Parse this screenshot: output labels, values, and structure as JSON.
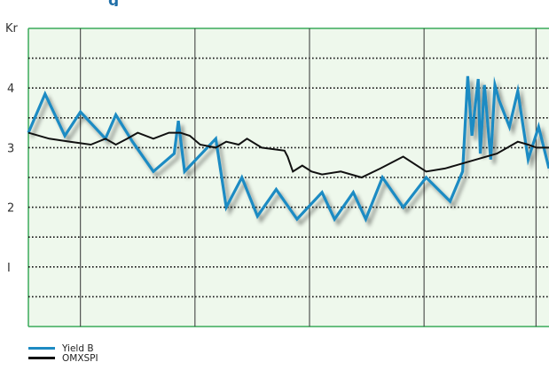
{
  "chart_data": {
    "type": "line",
    "title_fragment": "g",
    "y_unit_label": "Kr",
    "ylim": [
      0,
      5
    ],
    "y_ticks": [
      {
        "value": 1,
        "label": "I"
      },
      {
        "value": 2,
        "label": "2"
      },
      {
        "value": 3,
        "label": "3"
      },
      {
        "value": 4,
        "label": "4"
      }
    ],
    "y_gridlines": [
      0.5,
      1,
      1.5,
      2,
      2.5,
      3,
      3.5,
      4,
      4.5
    ],
    "x_range": [
      0,
      100
    ],
    "x_vertical_lines": [
      10,
      32,
      54,
      76,
      97.5
    ],
    "grid": true,
    "legend_position": "bottom-left",
    "colors": {
      "background": "#eef8ec",
      "frame": "#3aaa5a",
      "grid": "#111111",
      "yield_b": "#1e8bc3",
      "omxspi": "#111111"
    },
    "series": [
      {
        "name": "Yield B",
        "color": "#1e8bc3",
        "x": [
          0,
          3.2,
          7,
          10,
          14.8,
          16.8,
          20,
          24,
          28,
          28.8,
          30,
          36,
          38,
          41,
          44,
          47.6,
          51.6,
          56.4,
          58.8,
          62.4,
          64.8,
          68,
          72,
          76.4,
          81,
          83.4,
          84.4,
          85.2,
          86.4,
          86.8,
          87.6,
          88.8,
          89.6,
          90.4,
          92.4,
          94,
          96,
          98,
          100
        ],
        "y": [
          3.25,
          3.9,
          3.2,
          3.6,
          3.15,
          3.55,
          3.1,
          2.6,
          2.9,
          3.45,
          2.6,
          3.15,
          2.0,
          2.5,
          1.85,
          2.3,
          1.8,
          2.25,
          1.8,
          2.25,
          1.8,
          2.5,
          2.0,
          2.5,
          2.1,
          2.6,
          4.2,
          3.2,
          4.15,
          2.9,
          4.05,
          2.8,
          4.05,
          3.8,
          3.35,
          3.95,
          2.8,
          3.35,
          2.65
        ]
      },
      {
        "name": "OMXSPI",
        "color": "#111111",
        "x": [
          0,
          4,
          8,
          12,
          14.8,
          16.8,
          19,
          21,
          24,
          27,
          29.2,
          31,
          33,
          36,
          38,
          40.4,
          42,
          44.8,
          49.2,
          49.8,
          50.8,
          52.6,
          54.4,
          56.4,
          60,
          64,
          67.6,
          72,
          76.4,
          80,
          82,
          86,
          90,
          94,
          96,
          97.6,
          100
        ],
        "y": [
          3.25,
          3.15,
          3.1,
          3.05,
          3.15,
          3.05,
          3.15,
          3.25,
          3.15,
          3.25,
          3.25,
          3.2,
          3.05,
          3.0,
          3.1,
          3.05,
          3.15,
          3.0,
          2.95,
          2.85,
          2.6,
          2.7,
          2.6,
          2.55,
          2.6,
          2.5,
          2.65,
          2.85,
          2.6,
          2.65,
          2.7,
          2.8,
          2.9,
          3.1,
          3.05,
          3.0,
          3.0
        ]
      }
    ]
  }
}
